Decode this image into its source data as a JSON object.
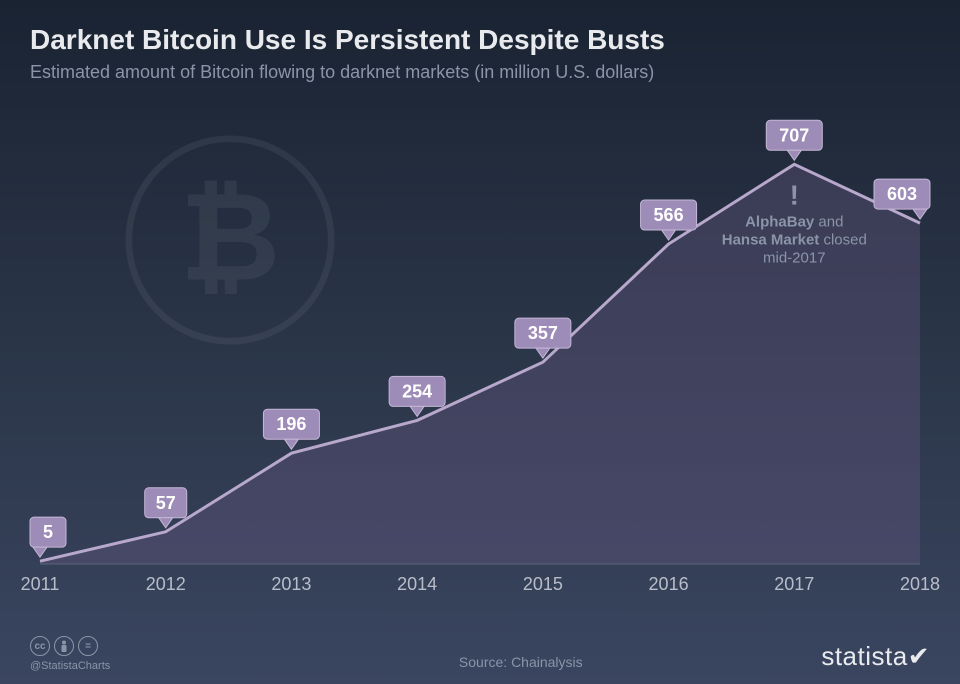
{
  "title": "Darknet Bitcoin Use Is Persistent Despite Busts",
  "subtitle": "Estimated amount of Bitcoin flowing to darknet markets (in million U.S. dollars)",
  "chart": {
    "type": "area",
    "categories": [
      "2011",
      "2012",
      "2013",
      "2014",
      "2015",
      "2016",
      "2017",
      "2018"
    ],
    "values": [
      5,
      57,
      196,
      254,
      357,
      566,
      707,
      603
    ],
    "line_color": "#b8a8cc",
    "area_color": "#6a5a85",
    "area_opacity": 0.35,
    "label_bg": "#9d8bb8",
    "label_border": "#c5b8d6",
    "label_text_color": "#ffffff",
    "label_fontsize": 18,
    "xaxis_color": "#b8bec9",
    "xaxis_fontsize": 18,
    "ylim": [
      0,
      750
    ],
    "background_gradient": [
      "#1a2332",
      "#2a3548",
      "#3a4560"
    ],
    "line_width": 3
  },
  "annotation": {
    "symbol": "!",
    "line1_a": "AlphaBay",
    "line1_b": " and",
    "line2_a": "Hansa Market",
    "line2_b": " closed",
    "line3": "mid-2017",
    "text_color": "#8a95a8",
    "fontsize": 15,
    "at_category": "2017"
  },
  "footer": {
    "handle": "@StatistaCharts",
    "source_label": "Source: ",
    "source_value": "Chainalysis",
    "brand": "statista",
    "cc_icons": [
      "cc",
      "by",
      "nd"
    ]
  }
}
